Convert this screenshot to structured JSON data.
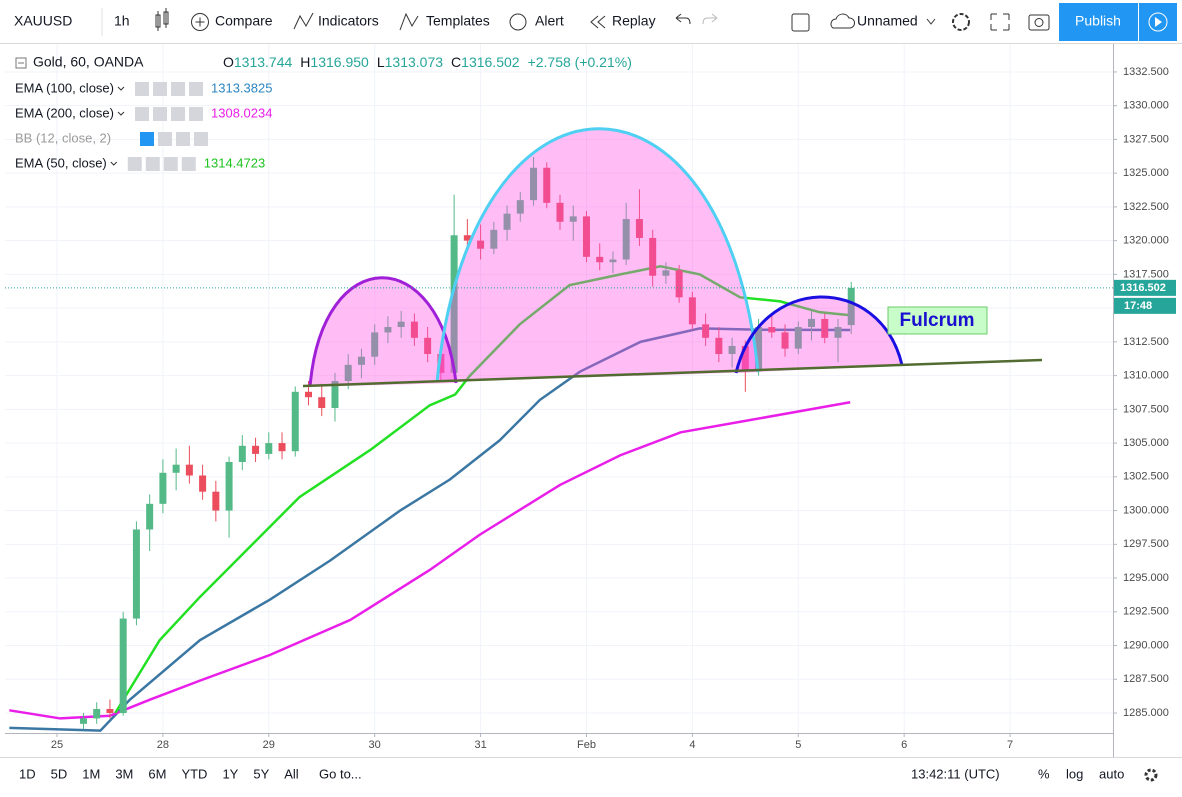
{
  "toolbar": {
    "symbol": "XAUUSD",
    "interval": "1h",
    "compare": "Compare",
    "indicators": "Indicators",
    "templates": "Templates",
    "alert": "Alert",
    "replay": "Replay",
    "layout": "Unnamed",
    "publish": "Publish"
  },
  "bottom_bar": {
    "ranges": [
      "1D",
      "5D",
      "1M",
      "3M",
      "6M",
      "YTD",
      "1Y",
      "5Y",
      "All"
    ],
    "goto": "Go to...",
    "clock": "13:42:11 (UTC)",
    "percent": "%",
    "log": "log",
    "auto": "auto"
  },
  "chart_data": {
    "type": "candlestick",
    "symbol_title": "Gold, 60, OANDA",
    "legend": {
      "o": "O",
      "open": "1313.744",
      "h": "H",
      "high": "1316.950",
      "l": "L",
      "low": "1313.073",
      "c": "C",
      "close": "1316.502",
      "change": "+2.758 (+0.21%)"
    },
    "hidden_indicators": [
      "BB (12, close, 2)"
    ],
    "up_color": "#53b987",
    "down_color": "#eb4d5c",
    "x": [
      0.25,
      0.375,
      0.5,
      0.625,
      0.75,
      0.875,
      1.0,
      1.125,
      1.25,
      1.375,
      1.5,
      1.625,
      1.75,
      1.875,
      2.0,
      2.125,
      2.25,
      2.375,
      2.5,
      2.625,
      2.75,
      2.875,
      3.0,
      3.125,
      3.25,
      3.375,
      3.5,
      3.625,
      3.75,
      3.875,
      4.0,
      4.125,
      4.25,
      4.375,
      4.5,
      4.625,
      4.75,
      4.875,
      5.0,
      5.125,
      5.25,
      5.375,
      5.5,
      5.625,
      5.75,
      5.875,
      6.0,
      6.125,
      6.25,
      6.375,
      6.5,
      6.625,
      6.75,
      6.875,
      7.0,
      7.125,
      7.25,
      7.375,
      7.5
    ],
    "open": [
      1284.2,
      1284.6,
      1285.3,
      1285.0,
      1292.0,
      1298.6,
      1300.5,
      1302.8,
      1303.4,
      1302.6,
      1301.4,
      1300.0,
      1303.6,
      1304.8,
      1304.2,
      1305.0,
      1304.4,
      1308.8,
      1308.4,
      1307.6,
      1309.6,
      1310.8,
      1311.4,
      1313.2,
      1313.6,
      1314.0,
      1312.8,
      1311.6,
      1310.2,
      1320.4,
      1320.0,
      1319.4,
      1320.8,
      1322.0,
      1323.0,
      1325.4,
      1322.8,
      1321.4,
      1321.8,
      1318.8,
      1318.4,
      1318.6,
      1321.6,
      1320.2,
      1317.4,
      1317.8,
      1315.8,
      1313.8,
      1312.8,
      1311.6,
      1312.2,
      1310.4,
      1313.6,
      1313.2,
      1312.0,
      1313.6,
      1314.2,
      1312.8,
      1313.744
    ],
    "high": [
      1285.0,
      1285.8,
      1286.0,
      1292.5,
      1299.2,
      1301.2,
      1303.8,
      1304.6,
      1304.8,
      1303.4,
      1302.2,
      1304.0,
      1305.6,
      1305.4,
      1305.8,
      1305.8,
      1309.2,
      1309.6,
      1309.4,
      1310.2,
      1311.6,
      1312.0,
      1313.8,
      1314.4,
      1314.8,
      1314.6,
      1313.6,
      1312.2,
      1323.4,
      1321.6,
      1321.2,
      1321.4,
      1322.6,
      1323.6,
      1326.2,
      1325.8,
      1323.4,
      1322.6,
      1322.2,
      1319.8,
      1319.2,
      1322.8,
      1323.8,
      1320.8,
      1318.4,
      1318.2,
      1316.2,
      1314.6,
      1313.6,
      1312.8,
      1312.6,
      1314.2,
      1314.6,
      1313.8,
      1314.0,
      1314.8,
      1314.6,
      1314.2,
      1316.95
    ],
    "low": [
      1283.8,
      1284.2,
      1284.6,
      1284.8,
      1291.5,
      1297.0,
      1299.8,
      1301.5,
      1302.0,
      1300.8,
      1299.2,
      1298.0,
      1303.0,
      1303.6,
      1303.8,
      1303.8,
      1304.0,
      1307.8,
      1307.0,
      1306.6,
      1309.0,
      1309.8,
      1310.8,
      1312.4,
      1312.8,
      1312.2,
      1311.0,
      1309.6,
      1310.0,
      1319.2,
      1318.6,
      1319.0,
      1320.0,
      1321.4,
      1322.6,
      1322.4,
      1320.8,
      1320.0,
      1318.4,
      1317.8,
      1317.6,
      1318.2,
      1319.6,
      1316.6,
      1316.8,
      1315.4,
      1313.4,
      1312.2,
      1311.0,
      1310.6,
      1308.8,
      1310.0,
      1312.8,
      1311.4,
      1311.6,
      1312.6,
      1312.4,
      1311.0,
      1313.073
    ],
    "close": [
      1284.6,
      1285.3,
      1285.0,
      1292.0,
      1298.6,
      1300.5,
      1302.8,
      1303.4,
      1302.6,
      1301.4,
      1300.0,
      1303.6,
      1304.8,
      1304.2,
      1305.0,
      1304.4,
      1308.8,
      1308.4,
      1307.6,
      1309.6,
      1310.8,
      1311.4,
      1313.2,
      1313.6,
      1314.0,
      1312.8,
      1311.6,
      1310.2,
      1320.4,
      1320.0,
      1319.4,
      1320.8,
      1322.0,
      1323.0,
      1325.4,
      1322.8,
      1321.4,
      1321.8,
      1318.8,
      1318.4,
      1318.6,
      1321.6,
      1320.2,
      1317.4,
      1317.8,
      1315.8,
      1313.8,
      1312.8,
      1311.6,
      1312.2,
      1310.4,
      1313.6,
      1313.2,
      1312.0,
      1313.6,
      1314.2,
      1312.8,
      1313.6,
      1316.502
    ],
    "series": [
      {
        "name": "EMA (100, close)",
        "color": "#3b77a3",
        "label_color": "#2e86c1",
        "x": [
          -0.45,
          0.41,
          0.69,
          1.35,
          2.01,
          2.58,
          3.24,
          3.71,
          4.18,
          4.56,
          4.94,
          5.51,
          6.07,
          6.64,
          7.49
        ],
        "values": [
          1283.9,
          1283.7,
          1286.0,
          1290.4,
          1293.4,
          1296.3,
          1300.0,
          1302.3,
          1305.2,
          1308.2,
          1310.3,
          1312.5,
          1313.5,
          1313.4,
          1313.3825
        ]
      },
      {
        "name": "EMA (200, close)",
        "color": "#e91ee9",
        "label_color": "#e91ee9",
        "x": [
          -0.45,
          0.03,
          0.5,
          0.88,
          1.35,
          2.01,
          2.77,
          3.52,
          3.99,
          4.75,
          5.32,
          5.89,
          6.54,
          7.49
        ],
        "values": [
          1285.2,
          1284.6,
          1284.8,
          1286.0,
          1287.4,
          1289.3,
          1291.9,
          1295.6,
          1298.2,
          1301.9,
          1304.1,
          1305.8,
          1306.7,
          1308.0234
        ]
      },
      {
        "name": "EMA (50, close)",
        "color": "#22e022",
        "label_color": "#1ec21e",
        "x": [
          0.55,
          0.97,
          1.35,
          1.82,
          2.29,
          2.96,
          3.52,
          3.76,
          3.9,
          4.37,
          4.84,
          5.32,
          5.7,
          6.07,
          6.45,
          6.83,
          7.2,
          7.49
        ],
        "values": [
          1285.0,
          1290.4,
          1293.6,
          1297.3,
          1301.0,
          1304.5,
          1307.8,
          1308.6,
          1310.0,
          1313.8,
          1316.7,
          1317.5,
          1318.1,
          1317.5,
          1315.8,
          1315.5,
          1314.7,
          1314.4723
        ]
      }
    ],
    "xlim": [
      -0.491,
      9.972
    ],
    "xticks": [
      {
        "value": 0,
        "label": "25"
      },
      {
        "value": 1,
        "label": "28"
      },
      {
        "value": 2,
        "label": "29"
      },
      {
        "value": 3,
        "label": "30"
      },
      {
        "value": 4,
        "label": "31"
      },
      {
        "value": 5,
        "label": "Feb"
      },
      {
        "value": 6,
        "label": "4"
      },
      {
        "value": 7,
        "label": "5"
      },
      {
        "value": 8,
        "label": "6"
      },
      {
        "value": 9,
        "label": "7"
      }
    ],
    "ylim": [
      1283.52,
      1334.57
    ],
    "yticks": [
      {
        "value": 1285,
        "label": "1285.000"
      },
      {
        "value": 1287.5,
        "label": "1287.500"
      },
      {
        "value": 1290,
        "label": "1290.000"
      },
      {
        "value": 1292.5,
        "label": "1292.500"
      },
      {
        "value": 1295,
        "label": "1295.000"
      },
      {
        "value": 1297.5,
        "label": "1297.500"
      },
      {
        "value": 1300,
        "label": "1300.000"
      },
      {
        "value": 1302.5,
        "label": "1302.500"
      },
      {
        "value": 1305,
        "label": "1305.000"
      },
      {
        "value": 1307.5,
        "label": "1307.500"
      },
      {
        "value": 1310,
        "label": "1310.000"
      },
      {
        "value": 1312.5,
        "label": "1312.500"
      },
      {
        "value": 1315,
        "label": "1315.000"
      },
      {
        "value": 1317.5,
        "label": "1317.500"
      },
      {
        "value": 1320,
        "label": "1320.000"
      },
      {
        "value": 1322.5,
        "label": "1322.500"
      },
      {
        "value": 1325,
        "label": "1325.000"
      },
      {
        "value": 1327.5,
        "label": "1327.500"
      },
      {
        "value": 1330,
        "label": "1330.000"
      },
      {
        "value": 1332.5,
        "label": "1332.500"
      }
    ],
    "countdown": "17:48",
    "price_line_color": "#26a69a",
    "annotation": "Fulcrum"
  }
}
